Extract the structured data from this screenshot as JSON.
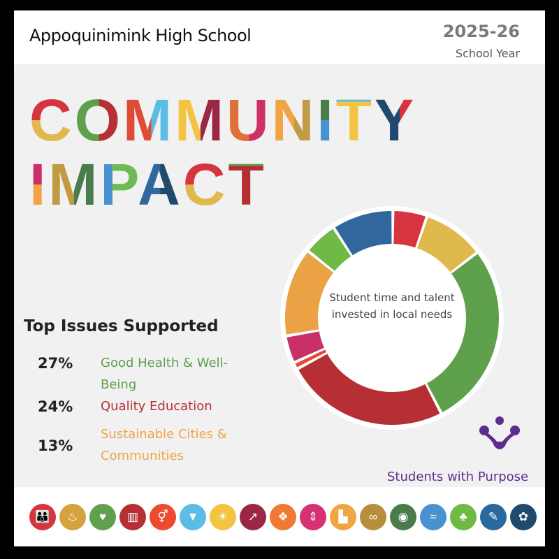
{
  "header": {
    "school": "Appoquinimink High School",
    "year": "2025-26",
    "year_label": "School Year"
  },
  "title": {
    "line1": "COMMUNITY",
    "line2": "IMPACT"
  },
  "issues": {
    "heading": "Top Issues Supported",
    "items": [
      {
        "pct": "27%",
        "label": "Good Health & Well-Being",
        "color": "#5fa04c"
      },
      {
        "pct": "24%",
        "label": "Quality Education",
        "color": "#b52f35"
      },
      {
        "pct": "13%",
        "label": "Sustainable Cities & Communities",
        "color": "#f0a444"
      }
    ]
  },
  "donut": {
    "center_text": "Student time and talent invested in local needs",
    "segments": [
      {
        "value": 5,
        "color": "#d6343f"
      },
      {
        "value": 9,
        "color": "#e0b94e"
      },
      {
        "value": 27,
        "color": "#5fa04c"
      },
      {
        "value": 24,
        "color": "#b52f35"
      },
      {
        "value": 1,
        "color": "#e04b35"
      },
      {
        "value": 4,
        "color": "#c9306a"
      },
      {
        "value": 13,
        "color": "#eba244"
      },
      {
        "value": 5,
        "color": "#6fba45"
      },
      {
        "value": 9,
        "color": "#30679c"
      }
    ]
  },
  "brand": {
    "name": "Students with Purpose",
    "color": "#5d2d8c"
  },
  "sdg_icons": [
    {
      "icon": "people-icon",
      "glyph": "👪",
      "color": "#d6343f"
    },
    {
      "icon": "bowl-icon",
      "glyph": "♨",
      "color": "#d4a340"
    },
    {
      "icon": "heartbeat-icon",
      "glyph": "♥",
      "color": "#5fa04c"
    },
    {
      "icon": "book-icon",
      "glyph": "▥",
      "color": "#b52f35"
    },
    {
      "icon": "gender-icon",
      "glyph": "⚥",
      "color": "#ee4a30"
    },
    {
      "icon": "water-icon",
      "glyph": "▼",
      "color": "#5bbce4"
    },
    {
      "icon": "sun-icon",
      "glyph": "☀",
      "color": "#f2c441"
    },
    {
      "icon": "growth-chart-icon",
      "glyph": "↗",
      "color": "#9a2744"
    },
    {
      "icon": "cubes-icon",
      "glyph": "❖",
      "color": "#f07a35"
    },
    {
      "icon": "equality-icon",
      "glyph": "⇕",
      "color": "#d63272"
    },
    {
      "icon": "city-icon",
      "glyph": "▙",
      "color": "#f0a444"
    },
    {
      "icon": "infinity-icon",
      "glyph": "∞",
      "color": "#b88d3c"
    },
    {
      "icon": "eye-icon",
      "glyph": "◉",
      "color": "#4a7c4b"
    },
    {
      "icon": "fish-icon",
      "glyph": "≈",
      "color": "#4892d0"
    },
    {
      "icon": "tree-icon",
      "glyph": "♣",
      "color": "#6fba45"
    },
    {
      "icon": "dove-icon",
      "glyph": "✎",
      "color": "#2a68a0"
    },
    {
      "icon": "rings-icon",
      "glyph": "✿",
      "color": "#1f4a6e"
    }
  ]
}
